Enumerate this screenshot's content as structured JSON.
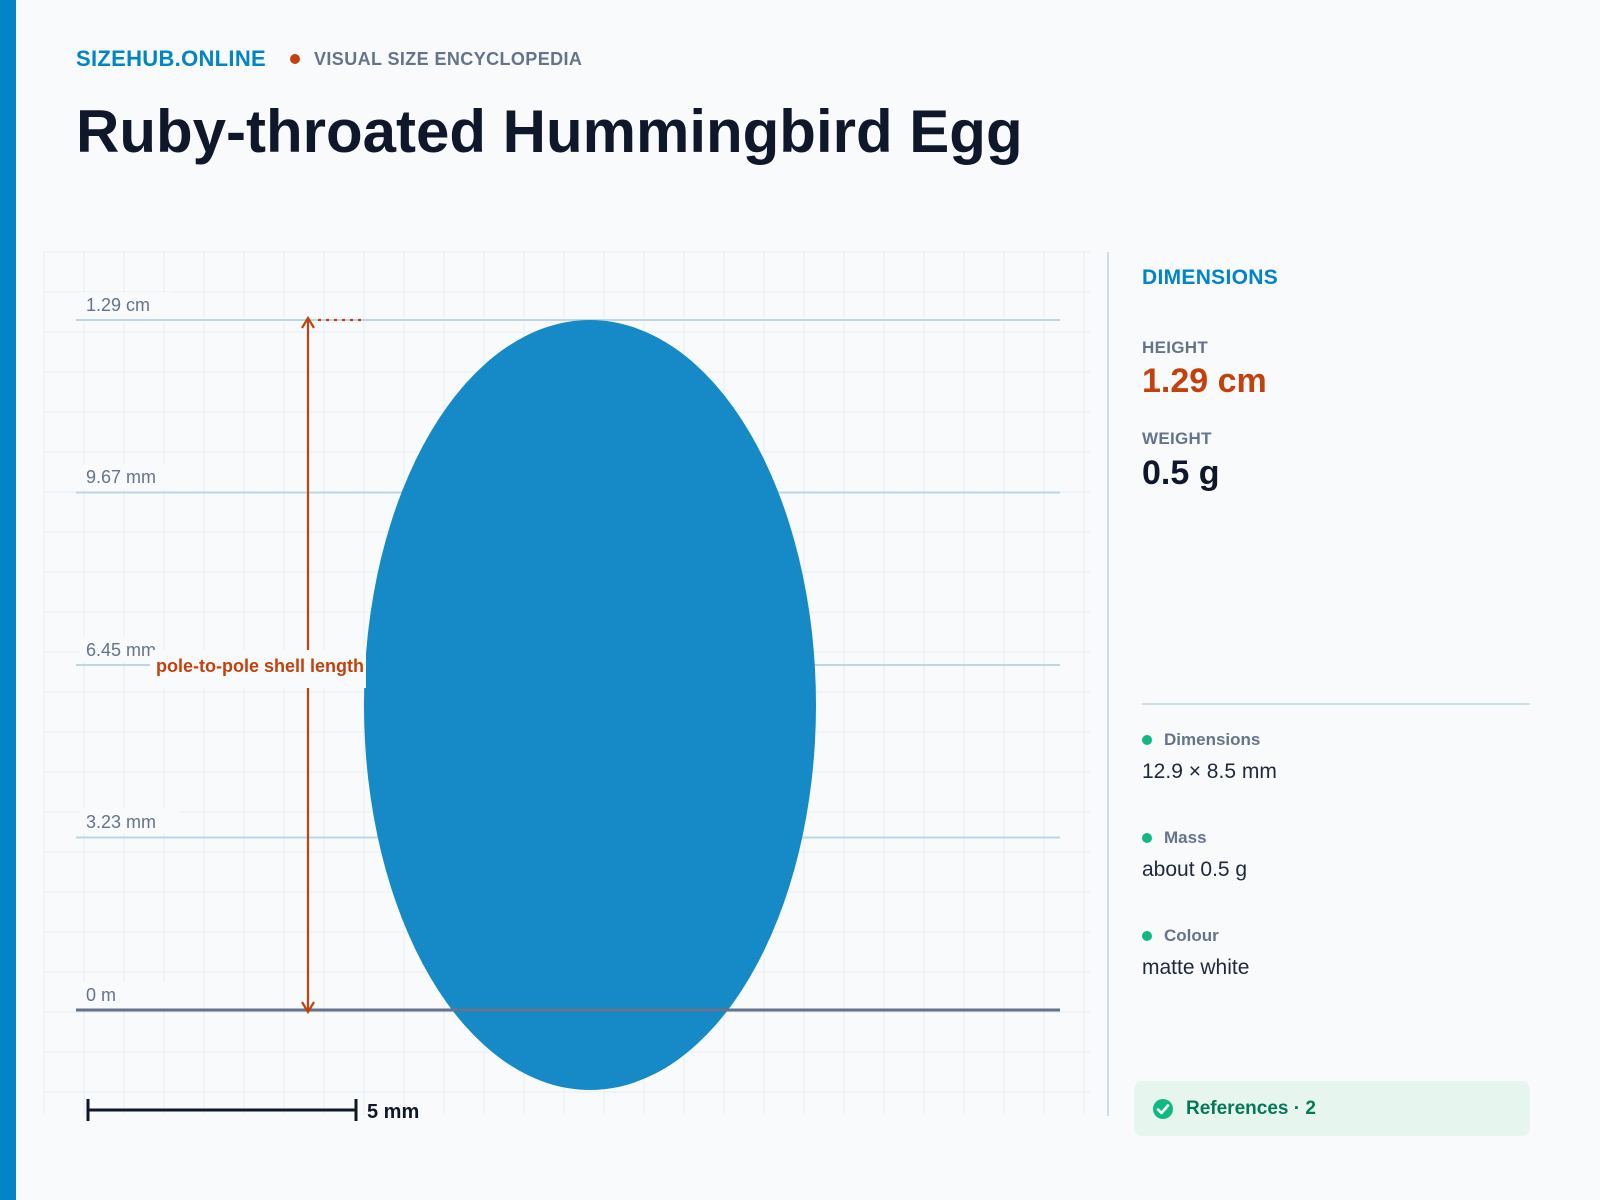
{
  "header": {
    "brand": "SIZEHUB.ONLINE",
    "tagline": "VISUAL SIZE ENCYCLOPEDIA",
    "title": "Ruby-throated Hummingbird Egg"
  },
  "diagram": {
    "ruler_labels": [
      "1.29 cm",
      "9.67 mm",
      "6.45 mm",
      "3.23 mm",
      "0 m"
    ],
    "measurement_label": "pole-to-pole shell length",
    "scale_bar_label": "5 mm",
    "egg_height_mm": 12.9,
    "egg_width_mm": 8.5,
    "colors": {
      "egg": "#1689c7",
      "measure": "#c2410c",
      "gridline": "#bcd6e6",
      "ground": "#64748b"
    }
  },
  "side_panel": {
    "heading": "DIMENSIONS",
    "height_label": "HEIGHT",
    "height_value": "1.29 cm",
    "weight_label": "WEIGHT",
    "weight_value": "0.5 g"
  },
  "facts": [
    {
      "label": "Dimensions",
      "value": "12.9 × 8.5 mm"
    },
    {
      "label": "Mass",
      "value": "about 0.5 g"
    },
    {
      "label": "Colour",
      "value": "matte white"
    }
  ],
  "references": {
    "label": "References · 2",
    "icon": "check-circle-icon"
  }
}
